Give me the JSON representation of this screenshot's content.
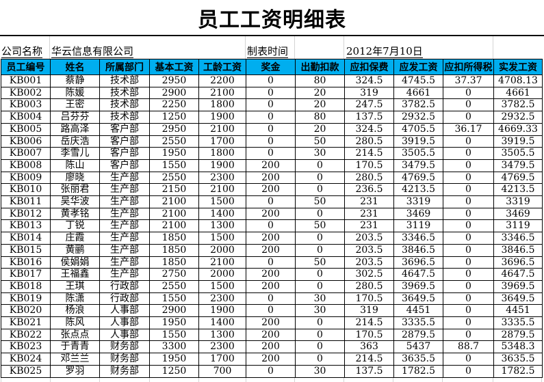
{
  "title": "员工工资明细表",
  "info": {
    "company_label": "公司名称",
    "company_name": "华云信息有限公司",
    "date_label": "制表时间",
    "date_value": "2012年7月10日"
  },
  "colors": {
    "header_bg": "#00AEEF",
    "header_text": "#000000",
    "grid": "#000000",
    "faint_grid": "#d4d4d4"
  },
  "table": {
    "headers": [
      "员工编号",
      "姓名",
      "所属部门",
      "基本工资",
      "工龄工资",
      "奖金",
      "出勤扣款",
      "应扣保费",
      "应发工资",
      "应扣所得税",
      "实发工资"
    ],
    "rows": [
      [
        "KB001",
        "蔡静",
        "技术部",
        "2950",
        "2200",
        "0",
        "80",
        "324.5",
        "4745.5",
        "37.37",
        "4708.13"
      ],
      [
        "KB002",
        "陈媛",
        "技术部",
        "2900",
        "2100",
        "0",
        "20",
        "319",
        "4661",
        "0",
        "4661"
      ],
      [
        "KB003",
        "王密",
        "技术部",
        "2250",
        "1800",
        "0",
        "20",
        "247.5",
        "3782.5",
        "0",
        "3782.5"
      ],
      [
        "KB004",
        "吕芬芬",
        "技术部",
        "1250",
        "1900",
        "0",
        "80",
        "137.5",
        "2932.5",
        "0",
        "2932.5"
      ],
      [
        "KB005",
        "路高泽",
        "客户部",
        "2950",
        "2100",
        "0",
        "20",
        "324.5",
        "4705.5",
        "36.17",
        "4669.33"
      ],
      [
        "KB006",
        "岳庆浩",
        "客户部",
        "2550",
        "1700",
        "0",
        "50",
        "280.5",
        "3919.5",
        "0",
        "3919.5"
      ],
      [
        "KB007",
        "李雪儿",
        "客户部",
        "1950",
        "1800",
        "0",
        "30",
        "214.5",
        "3505.5",
        "0",
        "3505.5"
      ],
      [
        "KB008",
        "陈山",
        "客户部",
        "1550",
        "1900",
        "200",
        "0",
        "170.5",
        "3479.5",
        "0",
        "3479.5"
      ],
      [
        "KB009",
        "廖晓",
        "生产部",
        "2550",
        "2300",
        "200",
        "0",
        "280.5",
        "4769.5",
        "0",
        "4769.5"
      ],
      [
        "KB010",
        "张丽君",
        "生产部",
        "2150",
        "2100",
        "200",
        "0",
        "236.5",
        "4213.5",
        "0",
        "4213.5"
      ],
      [
        "KB011",
        "吴华波",
        "生产部",
        "2100",
        "1500",
        "0",
        "50",
        "231",
        "3319",
        "0",
        "3319"
      ],
      [
        "KB012",
        "黄孝铭",
        "生产部",
        "2100",
        "1400",
        "200",
        "0",
        "231",
        "3469",
        "0",
        "3469"
      ],
      [
        "KB013",
        "丁锐",
        "生产部",
        "2100",
        "1300",
        "0",
        "50",
        "231",
        "3119",
        "0",
        "3119"
      ],
      [
        "KB014",
        "庄霞",
        "生产部",
        "1850",
        "1500",
        "200",
        "0",
        "203.5",
        "3346.5",
        "0",
        "3346.5"
      ],
      [
        "KB015",
        "黄鹂",
        "生产部",
        "1850",
        "2000",
        "200",
        "0",
        "203.5",
        "3846.5",
        "0",
        "3846.5"
      ],
      [
        "KB016",
        "侯娟娟",
        "生产部",
        "1850",
        "2100",
        "0",
        "50",
        "203.5",
        "3696.5",
        "0",
        "3696.5"
      ],
      [
        "KB017",
        "王福鑫",
        "生产部",
        "2750",
        "2000",
        "200",
        "0",
        "302.5",
        "4647.5",
        "0",
        "4647.5"
      ],
      [
        "KB018",
        "王琪",
        "行政部",
        "2550",
        "1500",
        "200",
        "0",
        "280.5",
        "3969.5",
        "0",
        "3969.5"
      ],
      [
        "KB019",
        "陈潇",
        "行政部",
        "1550",
        "2300",
        "0",
        "30",
        "170.5",
        "3649.5",
        "0",
        "3649.5"
      ],
      [
        "KB020",
        "杨浪",
        "人事部",
        "2900",
        "1900",
        "0",
        "30",
        "319",
        "4451",
        "0",
        "4451"
      ],
      [
        "KB021",
        "陈风",
        "人事部",
        "1950",
        "1400",
        "200",
        "0",
        "214.5",
        "3335.5",
        "0",
        "3335.5"
      ],
      [
        "KB022",
        "张点点",
        "人事部",
        "1550",
        "1300",
        "200",
        "0",
        "170.5",
        "2879.5",
        "0",
        "2879.5"
      ],
      [
        "KB023",
        "于青青",
        "财务部",
        "3300",
        "2300",
        "200",
        "0",
        "363",
        "5437",
        "88.7",
        "5348.3"
      ],
      [
        "KB024",
        "邓兰兰",
        "财务部",
        "1950",
        "1700",
        "200",
        "0",
        "214.5",
        "3635.5",
        "0",
        "3635.5"
      ],
      [
        "KB025",
        "罗羽",
        "财务部",
        "1250",
        "700",
        "0",
        "30",
        "137.5",
        "1782.5",
        "0",
        "1782.5"
      ]
    ]
  }
}
